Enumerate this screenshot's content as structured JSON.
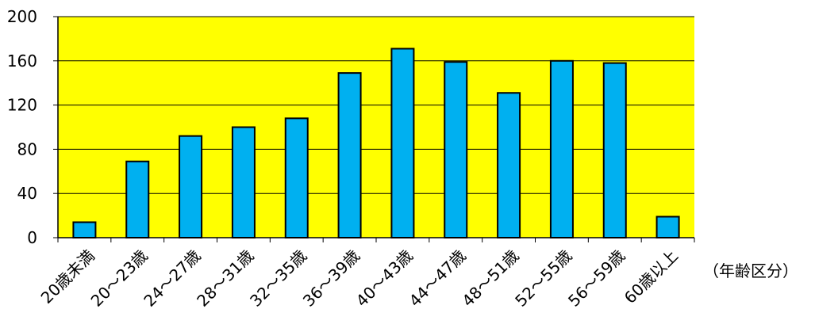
{
  "chart_data": {
    "type": "bar",
    "categories": [
      "20歳未満",
      "20～23歳",
      "24～27歳",
      "28～31歳",
      "32～35歳",
      "36～39歳",
      "40～43歳",
      "44～47歳",
      "48～51歳",
      "52～55歳",
      "56～59歳",
      "60歳以上"
    ],
    "values": [
      14,
      69,
      92,
      100,
      108,
      149,
      171,
      159,
      131,
      160,
      158,
      19
    ],
    "xlabel": "（年齢区分）",
    "ylabel": "",
    "title": "",
    "ylim": [
      0,
      200
    ],
    "yticks": [
      "0",
      "40",
      "80",
      "120",
      "160",
      "200"
    ],
    "grid": true,
    "legend": "none",
    "colors": {
      "plot_background": "#ffff00",
      "bar_fill": "#00b0f0",
      "bar_stroke": "#000000",
      "gridline": "#000000"
    }
  }
}
